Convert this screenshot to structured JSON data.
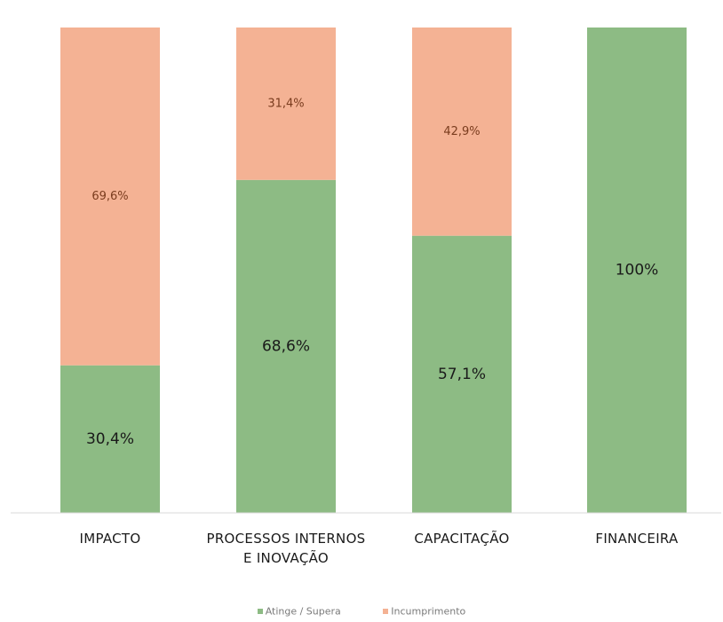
{
  "chart_data": {
    "type": "bar",
    "stacked": true,
    "percent": true,
    "categories": [
      [
        "IMPACTO"
      ],
      [
        "PROCESSOS INTERNOS",
        "E INOVAÇÃO"
      ],
      [
        "CAPACITAÇÃO"
      ],
      [
        "FINANCEIRA"
      ]
    ],
    "series": [
      {
        "name": "Atinge / Supera",
        "color": "#8dbb84",
        "values": [
          30.4,
          68.6,
          57.1,
          100
        ],
        "labels": [
          "30,4%",
          "68,6%",
          "57,1%",
          "100%"
        ]
      },
      {
        "name": "Incumprimento",
        "color": "#f4b294",
        "values": [
          69.6,
          31.4,
          42.9,
          0
        ],
        "labels": [
          "69,6%",
          "31,4%",
          "42,9%",
          ""
        ]
      }
    ],
    "ylim": [
      0,
      100
    ],
    "grid": false,
    "legend": "bottom",
    "title": "",
    "xlabel": "",
    "ylabel": ""
  }
}
